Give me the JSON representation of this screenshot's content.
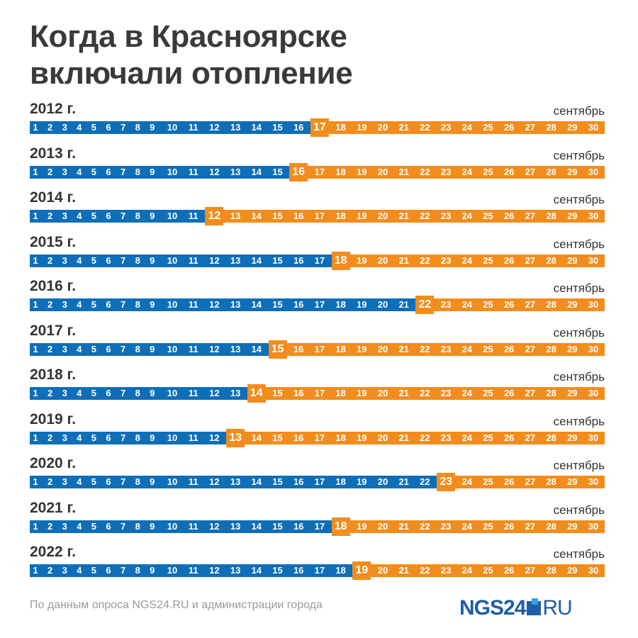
{
  "title_lines": [
    "Когда в Красноярске",
    "включали отопление"
  ],
  "source": "По данным опроса NGS24.RU и администрации города",
  "logo": {
    "main": "NGS24",
    "suffix": "RU"
  },
  "colors": {
    "before": "#0e6eb8",
    "after": "#f28c1c",
    "highlight": "#f28c1c"
  },
  "chart_data": {
    "type": "table",
    "month_label": "сентябрь",
    "days_in_month": 30,
    "rows": [
      {
        "year_label": "2012 г.",
        "start_day": 17
      },
      {
        "year_label": "2013 г.",
        "start_day": 16
      },
      {
        "year_label": "2014 г.",
        "start_day": 12
      },
      {
        "year_label": "2015 г.",
        "start_day": 18
      },
      {
        "year_label": "2016 г.",
        "start_day": 22
      },
      {
        "year_label": "2017 г.",
        "start_day": 15
      },
      {
        "year_label": "2018 г.",
        "start_day": 14
      },
      {
        "year_label": "2019 г.",
        "start_day": 13
      },
      {
        "year_label": "2020 г.",
        "start_day": 23
      },
      {
        "year_label": "2021 г.",
        "start_day": 18
      },
      {
        "year_label": "2022 г.",
        "start_day": 19
      }
    ]
  }
}
